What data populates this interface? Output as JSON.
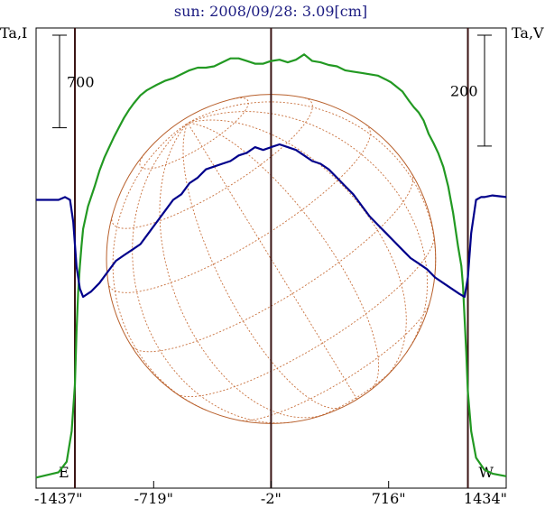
{
  "chart_data": {
    "type": "line",
    "title": "sun: 2008/09/28: 3.09[cm]",
    "left_axis_label": "Ta,I",
    "right_axis_label": "Ta,V",
    "xlim": [
      -1437,
      1434
    ],
    "x_ticks": [
      {
        "value": -1437,
        "label": "-1437\""
      },
      {
        "value": -719,
        "label": "-719\""
      },
      {
        "value": -2,
        "label": "-2\""
      },
      {
        "value": 716,
        "label": "716\""
      },
      {
        "value": 1434,
        "label": "1434\""
      }
    ],
    "limb_markers": [
      {
        "x": -1200,
        "label": "E"
      },
      {
        "x": -2,
        "label": ""
      },
      {
        "x": 1200,
        "label": "W"
      }
    ],
    "disk": {
      "center_x": -2,
      "radius": 1005
    },
    "scale_bars": [
      {
        "side": "left",
        "value": 700,
        "label": "700"
      },
      {
        "side": "right",
        "value": 200,
        "label": "200"
      }
    ],
    "ylim_I": [
      -80,
      3400
    ],
    "ylim_V": [
      -520,
      310
    ],
    "series": [
      {
        "name": "",
        "axis": "I",
        "color": "#229922",
        "x": [
          -1437,
          -1300,
          -1250,
          -1220,
          -1200,
          -1190,
          -1180,
          -1170,
          -1160,
          -1150,
          -1120,
          -1080,
          -1050,
          -1020,
          -990,
          -960,
          -930,
          -900,
          -870,
          -840,
          -800,
          -760,
          -730,
          -700,
          -650,
          -600,
          -550,
          -500,
          -450,
          -400,
          -350,
          -300,
          -250,
          -200,
          -150,
          -100,
          -50,
          -2,
          50,
          100,
          150,
          200,
          250,
          300,
          350,
          400,
          450,
          500,
          550,
          600,
          650,
          700,
          730,
          760,
          800,
          840,
          870,
          900,
          930,
          960,
          990,
          1020,
          1050,
          1080,
          1110,
          1140,
          1160,
          1170,
          1180,
          1190,
          1200,
          1220,
          1250,
          1300,
          1350,
          1434
        ],
        "values": [
          0,
          40,
          120,
          350,
          700,
          1100,
          1400,
          1600,
          1750,
          1880,
          2050,
          2200,
          2320,
          2420,
          2500,
          2580,
          2650,
          2720,
          2780,
          2830,
          2890,
          2930,
          2950,
          2970,
          3000,
          3020,
          3050,
          3080,
          3100,
          3100,
          3110,
          3140,
          3170,
          3170,
          3150,
          3130,
          3130,
          3150,
          3160,
          3140,
          3160,
          3200,
          3150,
          3140,
          3120,
          3110,
          3080,
          3070,
          3060,
          3050,
          3040,
          3010,
          2990,
          2960,
          2920,
          2850,
          2800,
          2760,
          2700,
          2600,
          2530,
          2450,
          2350,
          2200,
          2000,
          1750,
          1600,
          1450,
          1200,
          950,
          650,
          350,
          150,
          60,
          30,
          10
        ]
      },
      {
        "name": "",
        "axis": "V",
        "color": "#00008b",
        "x": [
          -1437,
          -1300,
          -1260,
          -1230,
          -1210,
          -1190,
          -1170,
          -1150,
          -1100,
          -1050,
          -1000,
          -950,
          -900,
          -850,
          -800,
          -750,
          -700,
          -650,
          -600,
          -550,
          -500,
          -450,
          -400,
          -350,
          -300,
          -250,
          -200,
          -150,
          -100,
          -50,
          -2,
          50,
          100,
          150,
          200,
          250,
          300,
          350,
          400,
          450,
          500,
          550,
          600,
          650,
          700,
          750,
          800,
          850,
          900,
          950,
          1000,
          1050,
          1100,
          1150,
          1180,
          1200,
          1220,
          1250,
          1280,
          1300,
          1350,
          1434
        ],
        "values": [
          0,
          0,
          5,
          0,
          -40,
          -120,
          -160,
          -175,
          -165,
          -150,
          -130,
          -110,
          -100,
          -90,
          -80,
          -60,
          -40,
          -20,
          0,
          10,
          30,
          40,
          55,
          60,
          65,
          70,
          80,
          85,
          95,
          90,
          95,
          100,
          95,
          90,
          80,
          70,
          65,
          55,
          40,
          25,
          10,
          -10,
          -30,
          -45,
          -60,
          -75,
          -90,
          -105,
          -115,
          -125,
          -140,
          -150,
          -160,
          -170,
          -175,
          -140,
          -60,
          0,
          5,
          5,
          8,
          5
        ]
      }
    ]
  }
}
